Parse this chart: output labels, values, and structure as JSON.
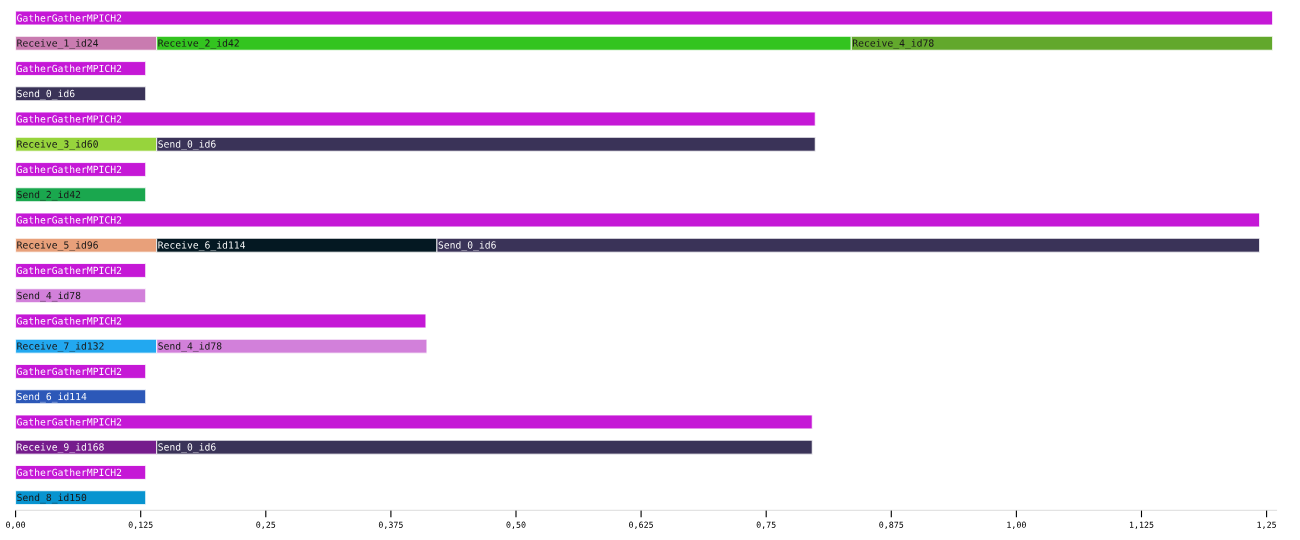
{
  "chart_data": {
    "type": "bar",
    "orientation": "horizontal",
    "stacked": true,
    "categories": [
      null,
      null,
      null,
      null,
      null,
      null,
      null,
      null,
      null,
      null,
      null,
      null,
      null,
      null,
      null,
      null,
      null,
      null,
      null,
      null
    ],
    "series": [
      {
        "values": [
          1.256,
          0.141,
          0.13,
          0.13,
          0.799,
          0.141,
          0.13,
          0.13,
          1.243,
          0.141,
          0.13,
          0.13,
          0.41,
          0.141,
          0.13,
          0.13,
          0.796,
          0.141,
          0.13,
          0.13
        ],
        "value_labels": [
          "GatherGatherMPICH2",
          "Receive_1_id24",
          "GatherGatherMPICH2",
          "Send_0_id6",
          "GatherGatherMPICH2",
          "Receive_3_id60",
          "GatherGatherMPICH2",
          "Send_2_id42",
          "GatherGatherMPICH2",
          "Receive_5_id96",
          "GatherGatherMPICH2",
          "Send_4_id78",
          "GatherGatherMPICH2",
          "Receive_7_id132",
          "GatherGatherMPICH2",
          "Send_6_id114",
          "GatherGatherMPICH2",
          "Receive_9_id168",
          "GatherGatherMPICH2",
          "Send_8_id150"
        ],
        "colors": [
          "#c518d6",
          "#c97bb0",
          "#c518d6",
          "#3a3358",
          "#c518d6",
          "#97d43c",
          "#c518d6",
          "#1aa74e",
          "#c518d6",
          "#e8a07a",
          "#c518d6",
          "#d280da",
          "#c518d6",
          "#22a8f0",
          "#c518d6",
          "#2c58b8",
          "#c518d6",
          "#761c8d",
          "#c518d6",
          "#0894d0"
        ]
      },
      {
        "values": [
          null,
          0.694,
          null,
          null,
          null,
          0.658,
          null,
          null,
          null,
          0.28,
          null,
          null,
          null,
          0.27,
          null,
          null,
          null,
          0.655,
          null,
          null
        ],
        "value_labels": [
          null,
          "Receive_2_id42",
          null,
          null,
          null,
          "Send_0_id6",
          null,
          null,
          null,
          "Receive_6_id114",
          null,
          null,
          null,
          "Send_4_id78",
          null,
          null,
          null,
          "Send_0_id6",
          null,
          null
        ],
        "colors": [
          null,
          "#33c41f",
          null,
          null,
          null,
          "#3a3358",
          null,
          null,
          null,
          "#041822",
          null,
          null,
          null,
          "#d280da",
          null,
          null,
          null,
          "#3a3358",
          null,
          null
        ]
      },
      {
        "values": [
          null,
          0.421,
          null,
          null,
          null,
          null,
          null,
          null,
          null,
          0.822,
          null,
          null,
          null,
          null,
          null,
          null,
          null,
          null,
          null,
          null
        ],
        "value_labels": [
          null,
          "Receive_4_id78",
          null,
          null,
          null,
          null,
          null,
          null,
          null,
          "Send_0_id6",
          null,
          null,
          null,
          null,
          null,
          null,
          null,
          null,
          null,
          null
        ],
        "colors": [
          null,
          "#62a82c",
          null,
          null,
          null,
          null,
          null,
          null,
          null,
          "#3a3358",
          null,
          null,
          null,
          null,
          null,
          null,
          null,
          null,
          null,
          null
        ]
      }
    ],
    "xlim": [
      0,
      1.26
    ],
    "xticks": [
      {
        "value": 0,
        "label": "0,00"
      },
      {
        "value": 0.125,
        "label": "0,125"
      },
      {
        "value": 0.25,
        "label": "0,25"
      },
      {
        "value": 0.375,
        "label": "0,375"
      },
      {
        "value": 0.5,
        "label": "0,50"
      },
      {
        "value": 0.625,
        "label": "0,625"
      },
      {
        "value": 0.75,
        "label": "0,75"
      },
      {
        "value": 0.875,
        "label": "0,875"
      },
      {
        "value": 1.0,
        "label": "1,00"
      },
      {
        "value": 1.125,
        "label": "1,125"
      },
      {
        "value": 1.25,
        "label": "1,25"
      }
    ],
    "tick_labels": "x",
    "grid": false
  }
}
